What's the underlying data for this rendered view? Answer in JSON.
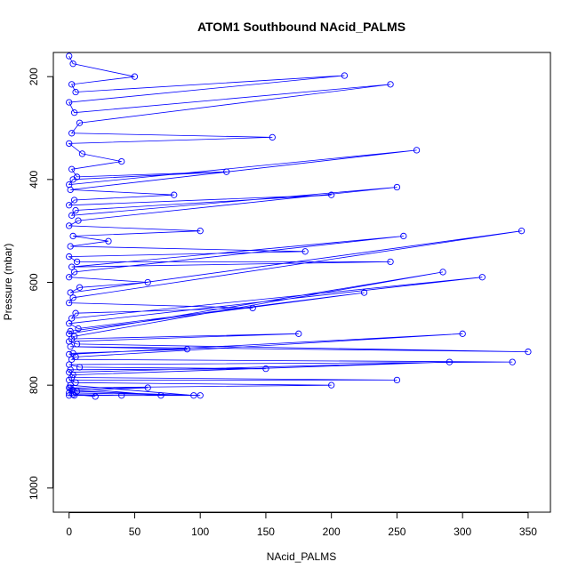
{
  "chart_data": {
    "type": "scatter",
    "title": "ATOM1 Southbound NAcid_PALMS",
    "xlabel": "NAcid_PALMS",
    "ylabel": "Pressure (mbar)",
    "xlim": [
      -12,
      367
    ],
    "ylim": [
      1047,
      153
    ],
    "y_reversed": true,
    "x_ticks": [
      0,
      50,
      100,
      150,
      200,
      250,
      300,
      350
    ],
    "y_ticks": [
      200,
      400,
      600,
      800,
      1000
    ],
    "series_color": "#0000ff",
    "marker": "open-circle",
    "series": [
      {
        "x": [
          0,
          3,
          50,
          2,
          5,
          210,
          0,
          4,
          245,
          8,
          2,
          155,
          0,
          10,
          40,
          2,
          6,
          120,
          3,
          0,
          265,
          1,
          80,
          4,
          0,
          200,
          5,
          2,
          250,
          7,
          0,
          100,
          3,
          30,
          1,
          180,
          0,
          6,
          245,
          2,
          255,
          4,
          0,
          60,
          8,
          1,
          345,
          3,
          0,
          140,
          5,
          2,
          315,
          0,
          7,
          225,
          1,
          0,
          285,
          4,
          2,
          175,
          0,
          6,
          350,
          1,
          90,
          3,
          0,
          300,
          5,
          2,
          338,
          0,
          8,
          150,
          1,
          0,
          290,
          3,
          2,
          250,
          0,
          5,
          200,
          1,
          60,
          3,
          0,
          100,
          4,
          2,
          70,
          0,
          6,
          95,
          1,
          0,
          40,
          3,
          20
        ],
        "y": [
          160,
          175,
          200,
          215,
          230,
          198,
          250,
          270,
          215,
          290,
          310,
          318,
          330,
          350,
          365,
          380,
          395,
          385,
          400,
          410,
          343,
          420,
          430,
          440,
          450,
          430,
          460,
          470,
          415,
          480,
          490,
          500,
          510,
          520,
          530,
          540,
          550,
          560,
          560,
          570,
          510,
          580,
          590,
          600,
          610,
          620,
          500,
          630,
          640,
          650,
          660,
          670,
          590,
          680,
          690,
          620,
          695,
          700,
          580,
          705,
          710,
          700,
          715,
          720,
          735,
          725,
          730,
          738,
          740,
          700,
          745,
          750,
          755,
          760,
          765,
          768,
          770,
          775,
          755,
          780,
          785,
          790,
          790,
          795,
          800,
          805,
          805,
          810,
          815,
          820,
          820,
          810,
          820,
          805,
          812,
          820,
          800,
          820,
          820,
          818,
          822
        ]
      }
    ]
  }
}
